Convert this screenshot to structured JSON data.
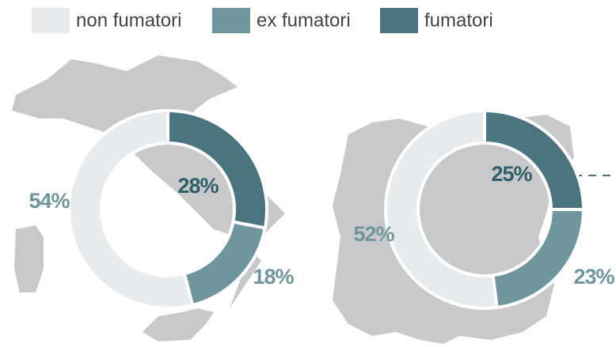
{
  "chart_data": [
    {
      "type": "donut",
      "categories": [
        "non fumatori",
        "ex fumatori",
        "fumatori"
      ],
      "values": [
        54,
        18,
        28
      ],
      "value_labels": [
        "54%",
        "18%",
        "28%"
      ],
      "colors": [
        "#e8ebee",
        "#6f969c",
        "#4a7480"
      ]
    },
    {
      "type": "donut",
      "categories": [
        "non fumatori",
        "ex fumatori",
        "fumatori"
      ],
      "values": [
        52,
        23,
        25
      ],
      "value_labels": [
        "52%",
        "23%",
        "25%"
      ],
      "colors": [
        "#e8ebee",
        "#6f969c",
        "#4a7480"
      ]
    }
  ]
}
